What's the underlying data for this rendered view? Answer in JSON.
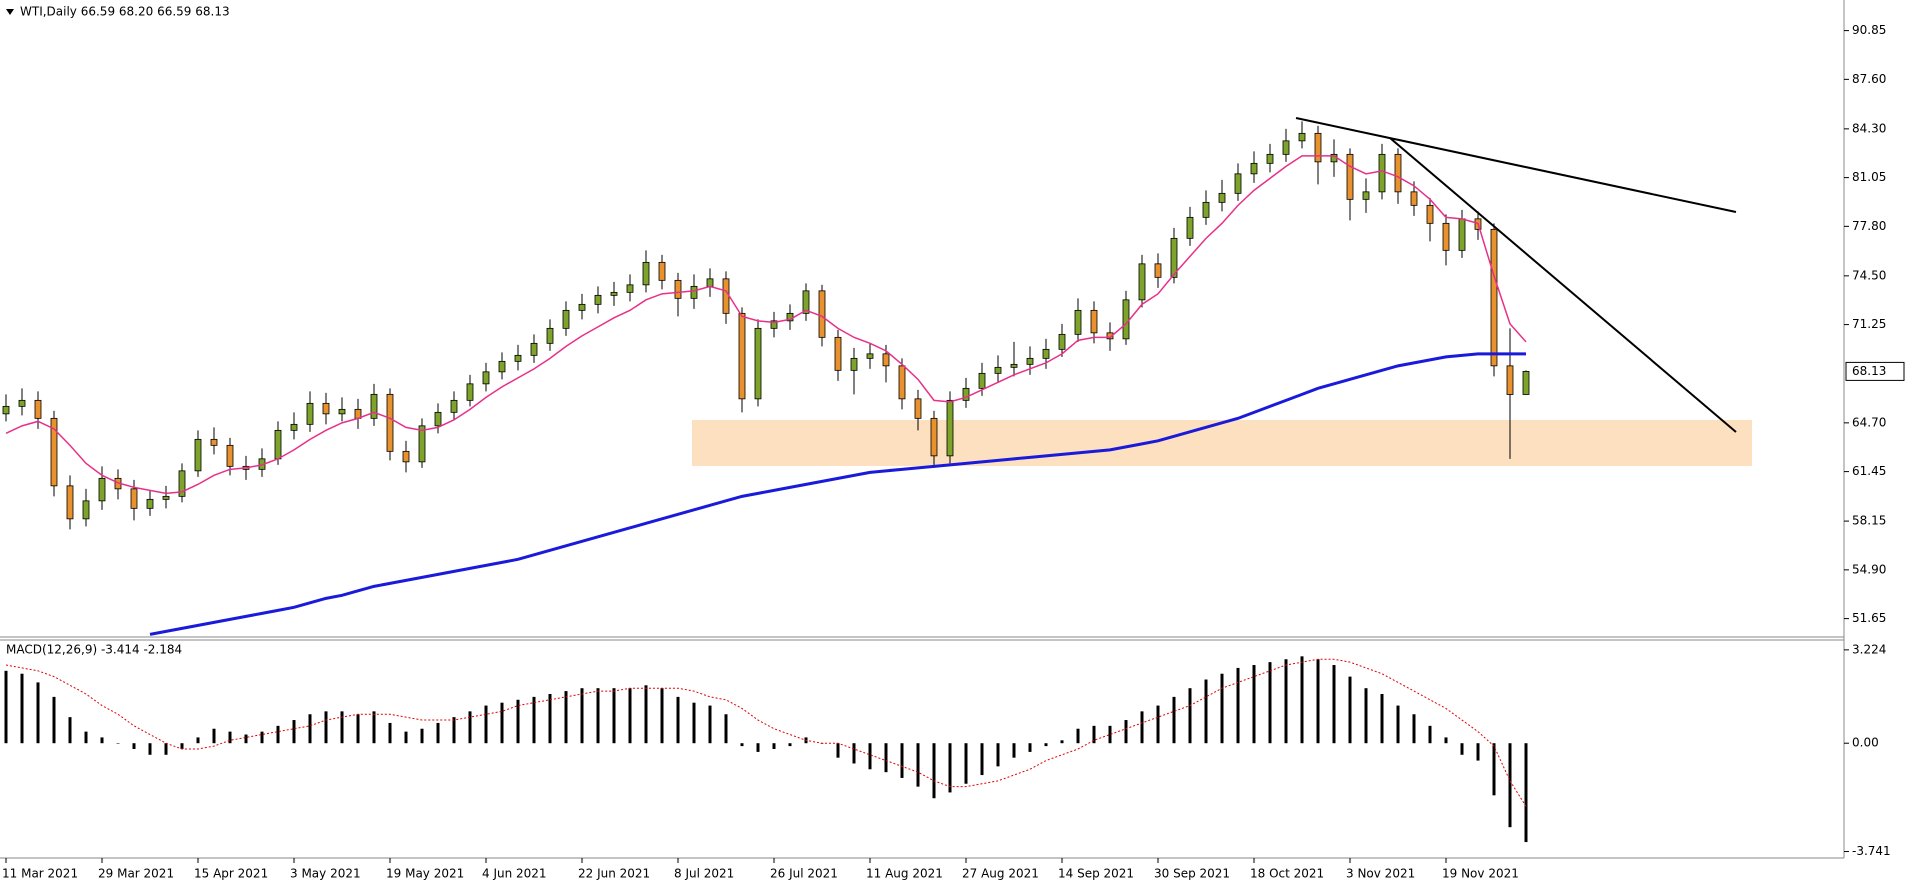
{
  "chart_data": [
    {
      "type": "candlestick",
      "title": "WTI,Daily  66.59 68.20 66.59 68.13",
      "categories": [
        "11 Mar 2021",
        null,
        null,
        null,
        null,
        null,
        "29 Mar 2021",
        null,
        null,
        null,
        null,
        null,
        "15 Apr 2021",
        null,
        null,
        null,
        null,
        null,
        "3 May 2021",
        null,
        null,
        null,
        null,
        null,
        "19 May 2021",
        null,
        null,
        null,
        null,
        null,
        "4 Jun 2021",
        null,
        null,
        null,
        null,
        null,
        "22 Jun 2021",
        null,
        null,
        null,
        null,
        null,
        "8 Jul 2021",
        null,
        null,
        null,
        null,
        null,
        "26 Jul 2021",
        null,
        null,
        null,
        null,
        null,
        "11 Aug 2021",
        null,
        null,
        null,
        null,
        null,
        "27 Aug 2021",
        null,
        null,
        null,
        null,
        null,
        "14 Sep 2021",
        null,
        null,
        null,
        null,
        null,
        "30 Sep 2021",
        null,
        null,
        null,
        null,
        null,
        "18 Oct 2021",
        null,
        null,
        null,
        null,
        null,
        "3 Nov 2021",
        null,
        null,
        null,
        null,
        null,
        "19 Nov 2021",
        null,
        null,
        null,
        null,
        null
      ],
      "open": [
        65.3,
        65.8,
        66.2,
        65.0,
        60.5,
        58.3,
        59.5,
        61.0,
        60.3,
        59.0,
        59.6,
        59.8,
        61.5,
        63.6,
        63.2,
        61.8,
        61.6,
        62.3,
        64.2,
        64.6,
        66.0,
        65.3,
        65.6,
        65.0,
        66.6,
        62.8,
        62.1,
        64.5,
        65.4,
        66.2,
        67.3,
        68.1,
        68.8,
        69.2,
        70.0,
        71.0,
        72.2,
        72.6,
        73.2,
        73.4,
        73.9,
        75.4,
        74.2,
        73.0,
        73.8,
        74.3,
        72.0,
        66.3,
        71.0,
        71.5,
        72.0,
        73.5,
        70.4,
        68.2,
        69.0,
        69.3,
        68.5,
        66.3,
        65.0,
        62.5,
        66.2,
        67.0,
        68.0,
        68.4,
        68.6,
        69.0,
        69.6,
        70.6,
        72.2,
        70.7,
        70.3,
        72.9,
        75.3,
        74.4,
        77.0,
        78.4,
        79.4,
        80.0,
        81.3,
        82.0,
        82.6,
        83.5,
        84.0,
        82.1,
        82.6,
        79.6,
        80.1,
        82.6,
        80.1,
        79.2,
        78.0,
        76.2,
        78.3,
        77.6,
        68.5,
        66.59
      ],
      "high": [
        66.6,
        67.0,
        66.8,
        65.5,
        61.2,
        60.3,
        61.8,
        61.6,
        60.9,
        60.2,
        60.5,
        62.0,
        64.2,
        64.4,
        63.7,
        62.5,
        63.0,
        64.8,
        65.4,
        66.8,
        66.7,
        66.4,
        66.3,
        67.3,
        67.0,
        63.5,
        65.0,
        66.0,
        66.8,
        67.9,
        68.7,
        69.4,
        69.9,
        70.6,
        71.6,
        72.8,
        73.3,
        73.8,
        74.1,
        74.6,
        76.2,
        75.9,
        74.7,
        74.6,
        75.0,
        74.8,
        72.4,
        71.6,
        72.1,
        72.6,
        74.0,
        73.9,
        70.9,
        69.7,
        70.0,
        69.9,
        69.0,
        66.9,
        65.5,
        66.8,
        67.7,
        68.7,
        69.2,
        70.1,
        69.8,
        70.3,
        71.3,
        73.0,
        72.8,
        71.4,
        73.5,
        75.9,
        76.0,
        77.7,
        79.1,
        80.2,
        80.9,
        82.0,
        82.8,
        83.3,
        84.3,
        84.8,
        84.5,
        83.6,
        83.0,
        81.0,
        83.3,
        83.0,
        80.8,
        79.7,
        78.6,
        78.9,
        78.8,
        78.0,
        71.0,
        68.2
      ],
      "low": [
        64.8,
        65.2,
        64.3,
        59.8,
        57.6,
        57.8,
        58.9,
        59.6,
        58.2,
        58.5,
        59.0,
        59.4,
        61.1,
        62.6,
        61.2,
        60.9,
        61.1,
        61.9,
        63.6,
        64.1,
        64.6,
        64.8,
        64.3,
        64.5,
        62.2,
        61.4,
        61.7,
        64.0,
        64.9,
        65.8,
        66.8,
        67.6,
        68.2,
        68.7,
        69.5,
        70.5,
        71.6,
        72.0,
        72.5,
        72.8,
        73.4,
        73.6,
        71.8,
        72.3,
        73.1,
        71.3,
        65.4,
        65.8,
        70.4,
        70.9,
        71.5,
        69.8,
        67.5,
        66.6,
        68.3,
        67.4,
        65.6,
        64.2,
        61.7,
        62.0,
        65.7,
        66.5,
        67.4,
        67.8,
        67.9,
        68.3,
        69.1,
        70.1,
        70.0,
        69.5,
        69.9,
        72.4,
        73.7,
        74.0,
        76.5,
        77.9,
        78.8,
        79.5,
        80.7,
        81.4,
        82.1,
        83.0,
        80.6,
        81.1,
        78.2,
        78.7,
        79.6,
        79.3,
        78.5,
        76.8,
        75.2,
        75.7,
        76.9,
        67.8,
        62.3,
        66.59
      ],
      "close": [
        65.8,
        66.2,
        65.0,
        60.5,
        58.3,
        59.5,
        61.0,
        60.3,
        59.0,
        59.6,
        59.8,
        61.5,
        63.6,
        63.2,
        61.8,
        61.6,
        62.3,
        64.2,
        64.6,
        66.0,
        65.3,
        65.6,
        65.0,
        66.6,
        62.8,
        62.1,
        64.5,
        65.4,
        66.2,
        67.3,
        68.1,
        68.8,
        69.2,
        70.0,
        71.0,
        72.2,
        72.6,
        73.2,
        73.4,
        73.9,
        75.4,
        74.2,
        73.0,
        73.8,
        74.3,
        72.0,
        66.3,
        71.0,
        71.5,
        72.0,
        73.5,
        70.4,
        68.2,
        69.0,
        69.3,
        68.5,
        66.3,
        65.0,
        62.5,
        66.2,
        67.0,
        68.0,
        68.4,
        68.6,
        69.0,
        69.6,
        70.6,
        72.2,
        70.7,
        70.3,
        72.9,
        75.3,
        74.4,
        77.0,
        78.4,
        79.4,
        80.0,
        81.3,
        82.0,
        82.6,
        83.5,
        84.0,
        82.1,
        82.6,
        79.6,
        80.1,
        82.6,
        80.1,
        79.2,
        78.0,
        76.2,
        78.3,
        77.6,
        68.5,
        66.59,
        68.13
      ],
      "up_color": "#7da32a",
      "down_color": "#e8912d",
      "ylim": [
        50.49,
        92.89
      ],
      "yticks": [
        90.85,
        {
          "value": 87.6,
          "label": "87.60"
        },
        {
          "value": 84.3,
          "label": "84.30"
        },
        81.05,
        {
          "value": 77.8,
          "label": "77.80"
        },
        {
          "value": 74.5,
          "label": "74.50"
        },
        71.25,
        {
          "value": 64.7,
          "label": "64.70"
        },
        61.45,
        58.15,
        {
          "value": 54.9,
          "label": "54.90"
        },
        51.65
      ],
      "lines": [
        {
          "color": "#e8308a",
          "width": 1.5,
          "values": [
            64.0,
            64.5,
            64.8,
            64.3,
            63.2,
            62.0,
            61.2,
            60.7,
            60.4,
            60.2,
            60.0,
            60.1,
            60.6,
            61.2,
            61.6,
            61.7,
            61.9,
            62.3,
            62.9,
            63.6,
            64.2,
            64.7,
            65.0,
            65.4,
            65.0,
            64.4,
            64.2,
            64.4,
            64.9,
            65.6,
            66.4,
            67.1,
            67.7,
            68.3,
            69.0,
            69.8,
            70.5,
            71.1,
            71.7,
            72.2,
            72.9,
            73.3,
            73.4,
            73.5,
            73.8,
            73.5,
            71.8,
            71.5,
            71.4,
            71.6,
            72.2,
            71.8,
            71.0,
            70.4,
            70.0,
            69.5,
            68.6,
            67.6,
            66.2,
            66.1,
            66.4,
            66.9,
            67.4,
            67.9,
            68.3,
            68.7,
            69.3,
            70.2,
            70.4,
            70.4,
            71.3,
            72.6,
            73.3,
            74.6,
            75.8,
            77.0,
            78.0,
            79.2,
            80.2,
            81.0,
            81.8,
            82.5,
            82.5,
            82.5,
            81.8,
            81.3,
            81.5,
            81.1,
            80.5,
            79.6,
            78.4,
            78.3,
            78.0,
            74.5,
            71.3,
            70.1
          ]
        },
        {
          "color": "#1a1adb",
          "width": 3,
          "values": [
            null,
            null,
            null,
            null,
            null,
            null,
            null,
            null,
            null,
            50.6,
            50.8,
            51.0,
            51.2,
            51.4,
            51.6,
            51.8,
            52.0,
            52.2,
            52.4,
            52.7,
            53.0,
            53.2,
            53.5,
            53.8,
            54.0,
            54.2,
            54.4,
            54.6,
            54.8,
            55.0,
            55.2,
            55.4,
            55.6,
            55.9,
            56.2,
            56.5,
            56.8,
            57.1,
            57.4,
            57.7,
            58.0,
            58.3,
            58.6,
            58.9,
            59.2,
            59.5,
            59.8,
            60.0,
            60.2,
            60.4,
            60.6,
            60.8,
            61.0,
            61.2,
            61.4,
            61.5,
            61.6,
            61.7,
            61.8,
            61.9,
            62.0,
            62.1,
            62.2,
            62.3,
            62.4,
            62.5,
            62.6,
            62.7,
            62.8,
            62.9,
            63.1,
            63.3,
            63.5,
            63.8,
            64.1,
            64.4,
            64.7,
            65.0,
            65.4,
            65.8,
            66.2,
            66.6,
            67.0,
            67.3,
            67.6,
            67.9,
            68.2,
            68.5,
            68.7,
            68.9,
            69.1,
            69.2,
            69.3,
            69.3,
            69.3,
            69.3
          ]
        }
      ]
    },
    {
      "type": "macd",
      "title": "MACD(12,26,9) -3.414 -2.184",
      "values": [
        2.5,
        2.4,
        2.1,
        1.6,
        0.9,
        0.4,
        0.2,
        0.0,
        -0.2,
        -0.4,
        -0.4,
        -0.2,
        0.2,
        0.5,
        0.4,
        0.3,
        0.4,
        0.6,
        0.8,
        1.0,
        1.1,
        1.1,
        1.0,
        1.1,
        0.7,
        0.4,
        0.5,
        0.7,
        0.9,
        1.1,
        1.3,
        1.4,
        1.5,
        1.6,
        1.7,
        1.8,
        1.9,
        1.9,
        1.9,
        1.9,
        2.0,
        1.9,
        1.6,
        1.4,
        1.3,
        1.0,
        -0.1,
        -0.3,
        -0.2,
        -0.1,
        0.2,
        0.0,
        -0.5,
        -0.7,
        -0.9,
        -1.0,
        -1.2,
        -1.5,
        -1.9,
        -1.7,
        -1.4,
        -1.1,
        -0.8,
        -0.5,
        -0.3,
        -0.1,
        0.1,
        0.5,
        0.6,
        0.6,
        0.8,
        1.1,
        1.3,
        1.6,
        1.9,
        2.2,
        2.4,
        2.6,
        2.7,
        2.8,
        2.9,
        3.0,
        2.9,
        2.7,
        2.3,
        1.9,
        1.7,
        1.3,
        1.0,
        0.6,
        0.2,
        -0.4,
        -0.6,
        -1.8,
        -2.9,
        -3.414
      ],
      "color": "#000000",
      "signal": [
        2.7,
        2.6,
        2.5,
        2.3,
        2.0,
        1.7,
        1.3,
        1.0,
        0.6,
        0.3,
        0.0,
        -0.2,
        -0.2,
        -0.1,
        0.1,
        0.2,
        0.3,
        0.4,
        0.5,
        0.6,
        0.8,
        0.9,
        1.0,
        1.0,
        1.0,
        0.9,
        0.8,
        0.8,
        0.8,
        0.9,
        1.0,
        1.1,
        1.3,
        1.4,
        1.5,
        1.6,
        1.7,
        1.8,
        1.8,
        1.9,
        1.9,
        1.9,
        1.9,
        1.8,
        1.6,
        1.5,
        1.2,
        0.8,
        0.5,
        0.3,
        0.1,
        0.0,
        0.0,
        -0.2,
        -0.4,
        -0.6,
        -0.8,
        -1.0,
        -1.3,
        -1.5,
        -1.5,
        -1.4,
        -1.3,
        -1.1,
        -0.9,
        -0.6,
        -0.4,
        -0.2,
        0.1,
        0.3,
        0.5,
        0.7,
        0.9,
        1.1,
        1.3,
        1.6,
        1.9,
        2.1,
        2.3,
        2.5,
        2.7,
        2.8,
        2.9,
        2.9,
        2.8,
        2.6,
        2.4,
        2.1,
        1.8,
        1.5,
        1.2,
        0.8,
        0.4,
        -0.1,
        -1.3,
        -2.184
      ],
      "signal_color": "#e00000",
      "ylim": [
        -3.93,
        3.53
      ],
      "yticks": [
        3.224,
        {
          "value": 0,
          "label": "0.00"
        },
        -3.741
      ]
    }
  ]
}
